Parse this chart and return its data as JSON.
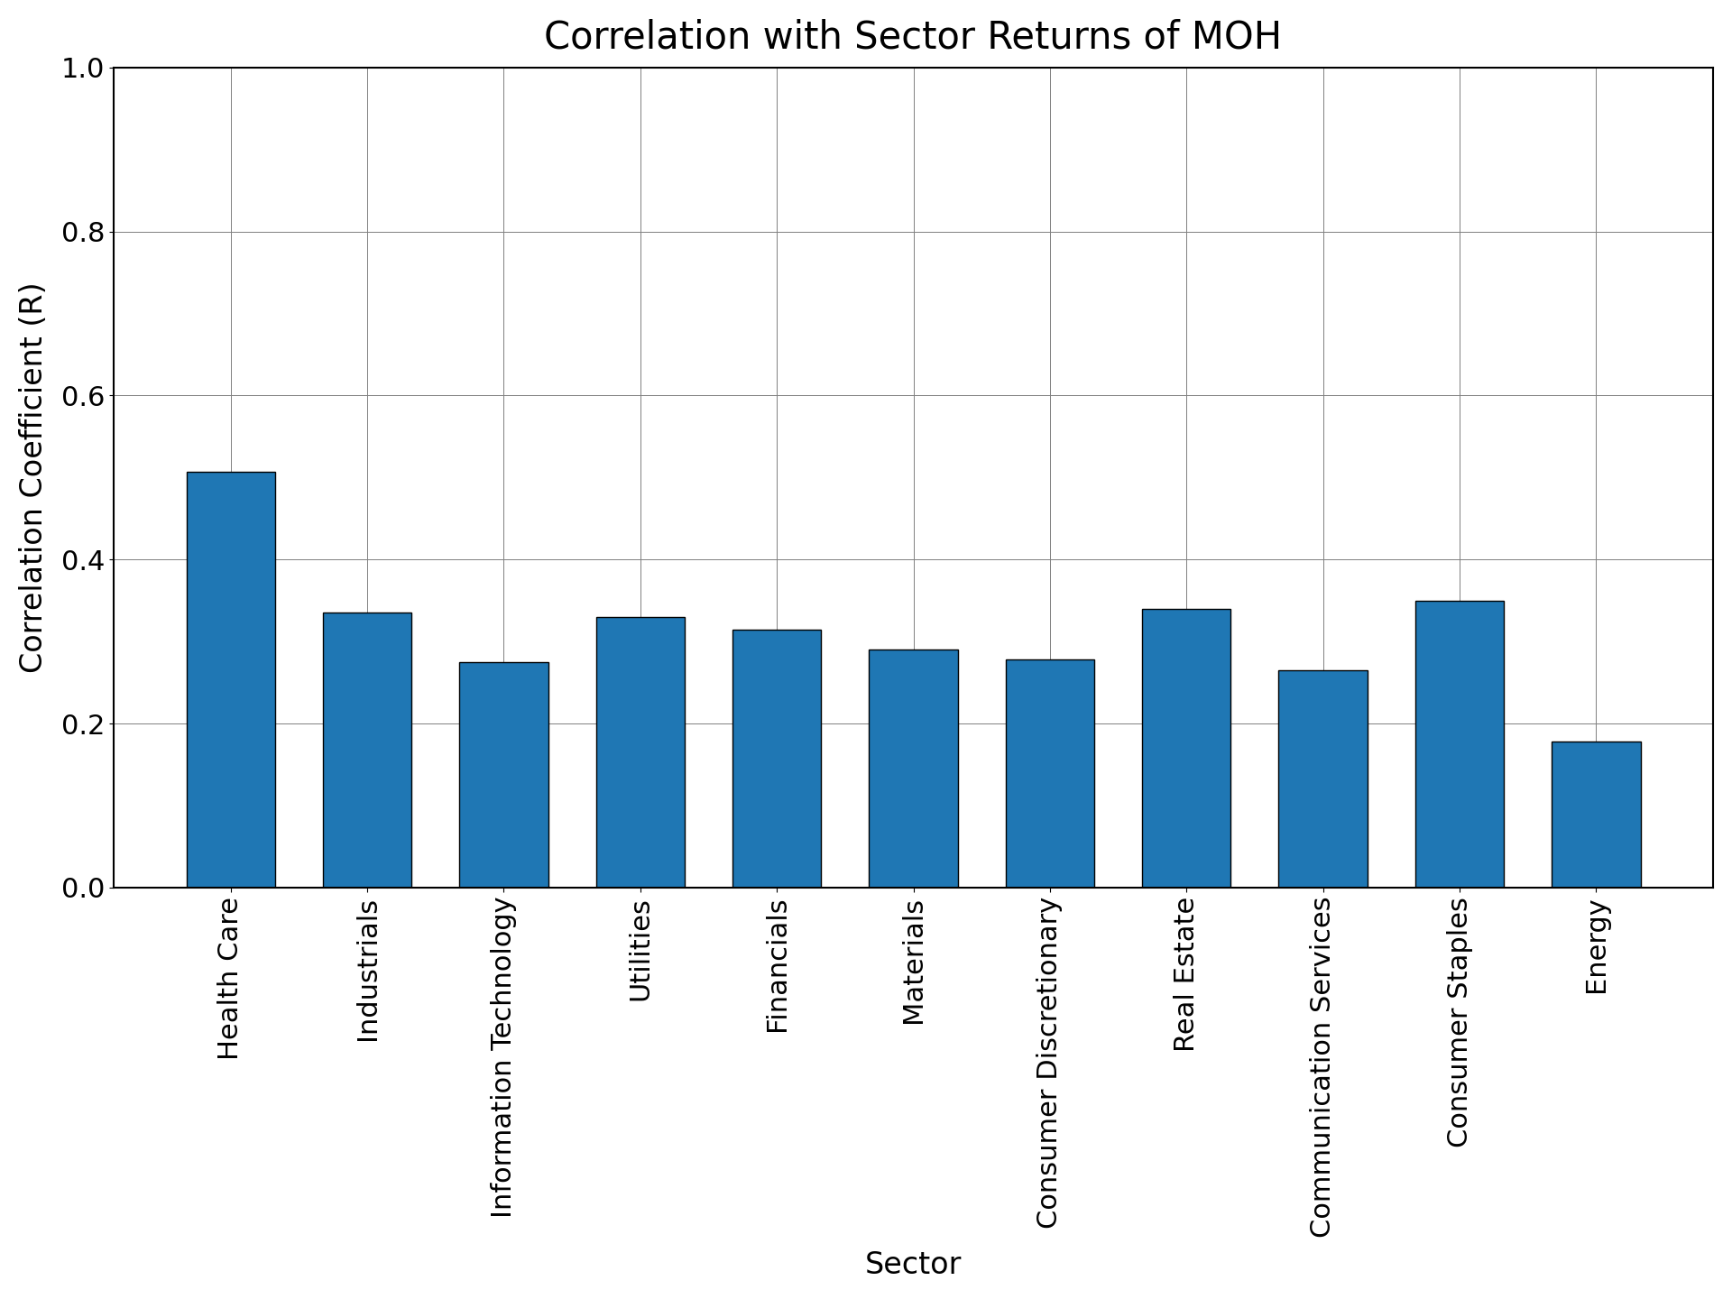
{
  "title": "Correlation with Sector Returns of MOH",
  "xlabel": "Sector",
  "ylabel": "Correlation Coefficient (R)",
  "ylim": [
    0.0,
    1.0
  ],
  "yticks": [
    0.0,
    0.2,
    0.4,
    0.6,
    0.8,
    1.0
  ],
  "categories": [
    "Health Care",
    "Industrials",
    "Information Technology",
    "Utilities",
    "Financials",
    "Materials",
    "Consumer Discretionary",
    "Real Estate",
    "Communication Services",
    "Consumer Staples",
    "Energy"
  ],
  "values": [
    0.507,
    0.335,
    0.275,
    0.33,
    0.315,
    0.29,
    0.278,
    0.34,
    0.265,
    0.35,
    0.178
  ],
  "bar_color": "#1f77b4",
  "bar_edgecolor": "black",
  "bar_linewidth": 1.0,
  "title_fontsize": 30,
  "label_fontsize": 24,
  "tick_fontsize": 22,
  "figsize": [
    19.2,
    14.4
  ],
  "dpi": 100,
  "bar_width": 0.65
}
